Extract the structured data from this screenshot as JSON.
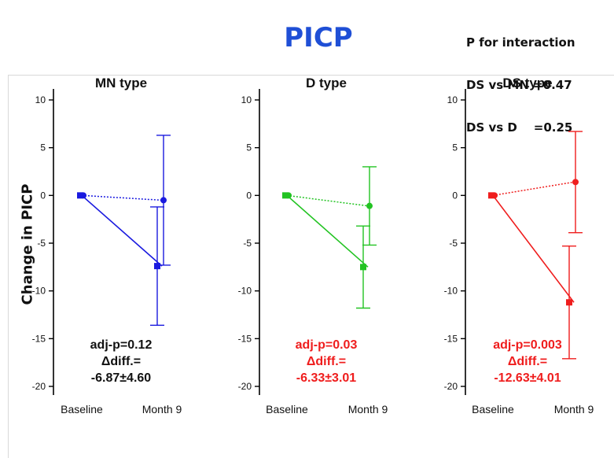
{
  "figure": {
    "title": "PICP",
    "interaction_lines": [
      "P for interaction",
      "DS vs MN =0.47",
      "DS vs D    =0.25"
    ],
    "ylabel": "Change in PICP"
  },
  "chart_data": [
    {
      "type": "line",
      "title": "MN type",
      "categories": [
        "Baseline",
        "Month 9"
      ],
      "ylim": [
        -20,
        10
      ],
      "yticks": [
        10,
        5,
        0,
        -5,
        -10,
        -15,
        -20
      ],
      "color": "#1a1adf",
      "series": [
        {
          "style": "dotted",
          "marker": "circle",
          "values": [
            0,
            -0.5
          ],
          "error": [
            0,
            6.8
          ]
        },
        {
          "style": "solid",
          "marker": "square",
          "values": [
            0,
            -7.4
          ],
          "error": [
            0,
            6.2
          ]
        }
      ],
      "stats": [
        "adj-p=0.12",
        "Δdiff.=",
        "-6.87±4.60"
      ],
      "stats_color": "#111111"
    },
    {
      "type": "line",
      "title": "D type",
      "categories": [
        "Baseline",
        "Month 9"
      ],
      "ylim": [
        -20,
        10
      ],
      "yticks": [
        10,
        5,
        0,
        -5,
        -10,
        -15,
        -20
      ],
      "color": "#22c322",
      "series": [
        {
          "style": "dotted",
          "marker": "circle",
          "values": [
            0,
            -1.1
          ],
          "error": [
            0,
            4.1
          ]
        },
        {
          "style": "solid",
          "marker": "square",
          "values": [
            0,
            -7.5
          ],
          "error": [
            0,
            4.3
          ]
        }
      ],
      "stats": [
        "adj-p=0.03",
        "Δdiff.=",
        "-6.33±3.01"
      ],
      "stats_color": "#ef1d1d"
    },
    {
      "type": "line",
      "title": "DS type",
      "categories": [
        "Baseline",
        "Month 9"
      ],
      "ylim": [
        -20,
        10
      ],
      "yticks": [
        10,
        5,
        0,
        -5,
        -10,
        -15,
        -20
      ],
      "color": "#ef1d1d",
      "series": [
        {
          "style": "dotted",
          "marker": "circle",
          "values": [
            0,
            1.4
          ],
          "error": [
            0,
            5.3
          ]
        },
        {
          "style": "solid",
          "marker": "square",
          "values": [
            0,
            -11.2
          ],
          "error": [
            0,
            5.9
          ]
        }
      ],
      "stats": [
        "adj-p=0.003",
        "Δdiff.=",
        "-12.63±4.01"
      ],
      "stats_color": "#ef1d1d"
    }
  ]
}
